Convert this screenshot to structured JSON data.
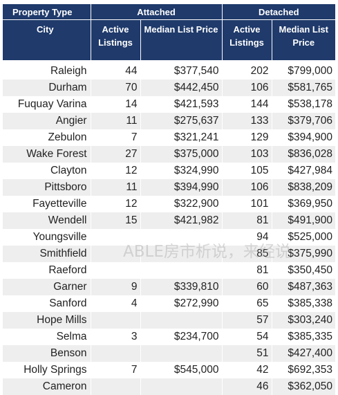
{
  "header": {
    "property_type_label": "Property Type",
    "attached_label": "Attached",
    "detached_label": "Detached",
    "city_label": "City",
    "active_listings_label": "Active Listings",
    "median_list_price_label": "Median List Price"
  },
  "rows": [
    {
      "city": "Raleigh",
      "att_listings": "44",
      "att_price": "$377,540",
      "det_listings": "202",
      "det_price": "$799,000"
    },
    {
      "city": "Durham",
      "att_listings": "70",
      "att_price": "$442,450",
      "det_listings": "106",
      "det_price": "$581,765"
    },
    {
      "city": "Fuquay Varina",
      "att_listings": "14",
      "att_price": "$421,593",
      "det_listings": "144",
      "det_price": "$538,178"
    },
    {
      "city": "Angier",
      "att_listings": "11",
      "att_price": "$275,637",
      "det_listings": "133",
      "det_price": "$379,706"
    },
    {
      "city": "Zebulon",
      "att_listings": "7",
      "att_price": "$321,241",
      "det_listings": "129",
      "det_price": "$394,900"
    },
    {
      "city": "Wake Forest",
      "att_listings": "27",
      "att_price": "$375,000",
      "det_listings": "103",
      "det_price": "$836,028"
    },
    {
      "city": "Clayton",
      "att_listings": "12",
      "att_price": "$324,990",
      "det_listings": "105",
      "det_price": "$427,984"
    },
    {
      "city": "Pittsboro",
      "att_listings": "11",
      "att_price": "$394,990",
      "det_listings": "106",
      "det_price": "$838,209"
    },
    {
      "city": "Fayetteville",
      "att_listings": "12",
      "att_price": "$322,900",
      "det_listings": "101",
      "det_price": "$369,950"
    },
    {
      "city": "Wendell",
      "att_listings": "15",
      "att_price": "$421,982",
      "det_listings": "81",
      "det_price": "$491,900"
    },
    {
      "city": "Youngsville",
      "att_listings": "",
      "att_price": "",
      "det_listings": "94",
      "det_price": "$525,000"
    },
    {
      "city": "Smithfield",
      "att_listings": "",
      "att_price": "",
      "det_listings": "85",
      "det_price": "$375,990"
    },
    {
      "city": "Raeford",
      "att_listings": "",
      "att_price": "",
      "det_listings": "81",
      "det_price": "$350,450"
    },
    {
      "city": "Garner",
      "att_listings": "9",
      "att_price": "$339,810",
      "det_listings": "60",
      "det_price": "$487,363"
    },
    {
      "city": "Sanford",
      "att_listings": "4",
      "att_price": "$272,990",
      "det_listings": "65",
      "det_price": "$385,338"
    },
    {
      "city": "Hope Mills",
      "att_listings": "",
      "att_price": "",
      "det_listings": "57",
      "det_price": "$303,240"
    },
    {
      "city": "Selma",
      "att_listings": "3",
      "att_price": "$234,700",
      "det_listings": "54",
      "det_price": "$385,335"
    },
    {
      "city": "Benson",
      "att_listings": "",
      "att_price": "",
      "det_listings": "51",
      "det_price": "$427,400"
    },
    {
      "city": "Holly Springs",
      "att_listings": "7",
      "att_price": "$545,000",
      "det_listings": "42",
      "det_price": "$692,353"
    },
    {
      "city": "Cameron",
      "att_listings": "",
      "att_price": "",
      "det_listings": "46",
      "det_price": "$362,050"
    }
  ],
  "watermark": "ABLE房市析说，来经说",
  "colors": {
    "header_bg": "#1f3a6b",
    "stripe": "#eeeeee"
  }
}
